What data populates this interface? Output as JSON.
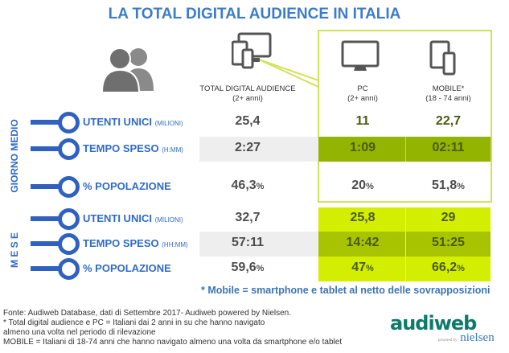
{
  "title": "LA TOTAL DIGITAL AUDIENCE IN ITALIA",
  "columns": [
    {
      "label": "TOTAL DIGITAL AUDIENCE",
      "sub": "(2+ anni)",
      "icon": "multi-device-icon"
    },
    {
      "label": "PC",
      "sub": "(2+ anni)",
      "icon": "monitor-icon"
    },
    {
      "label": "MOBILE*",
      "sub": "(18 - 74 anni)",
      "icon": "tablet-phone-icon"
    }
  ],
  "sections": [
    {
      "label": "GIORNO MEDIO",
      "rows": [
        {
          "label": "UTENTI UNICI",
          "unit": "(MILIONI)",
          "values": [
            "25,4",
            "11",
            "22,7"
          ],
          "suffix": ""
        },
        {
          "label": "TEMPO SPESO",
          "unit": "(H:MM)",
          "values": [
            "2:27",
            "1:09",
            "02:11"
          ],
          "suffix": ""
        },
        {
          "label": "% POPOLAZIONE",
          "unit": "",
          "values": [
            "46,3",
            "20",
            "51,8"
          ],
          "suffix": "%"
        }
      ]
    },
    {
      "label": "M E S E",
      "rows": [
        {
          "label": "UTENTI UNICI",
          "unit": "(MILIONI)",
          "values": [
            "32,7",
            "25,8",
            "29"
          ],
          "suffix": ""
        },
        {
          "label": "TEMPO SPESO",
          "unit": "(HH:MM)",
          "values": [
            "57:11",
            "14:42",
            "51:25"
          ],
          "suffix": ""
        },
        {
          "label": "% POPOLAZIONE",
          "unit": "",
          "values": [
            "59,6",
            "47",
            "66,2"
          ],
          "suffix": "%"
        }
      ]
    }
  ],
  "note": "* Mobile = smartphone e tablet al netto delle sovrapposizioni",
  "footer": [
    "Fonte: Audiweb Database, dati di Settembre 2017- Audiweb powered by Nielsen.",
    "* Total digital audience e PC = Italiani dai 2 anni in su che hanno navigato",
    "almeno una volta nel periodo di rilevazione",
    "MOBILE = Italiani di 18-74 anni che hanno navigato almeno una volta da smartphone e/o tablet"
  ],
  "logo": {
    "main": "audiweb",
    "powered": "powered by",
    "brand": "nielsen"
  },
  "colors": {
    "blue": "#2f62c0",
    "lime": "#d4ee00",
    "green_dark": "#93b400",
    "green_mid": "#a8c400",
    "border": "#cfe35a"
  }
}
